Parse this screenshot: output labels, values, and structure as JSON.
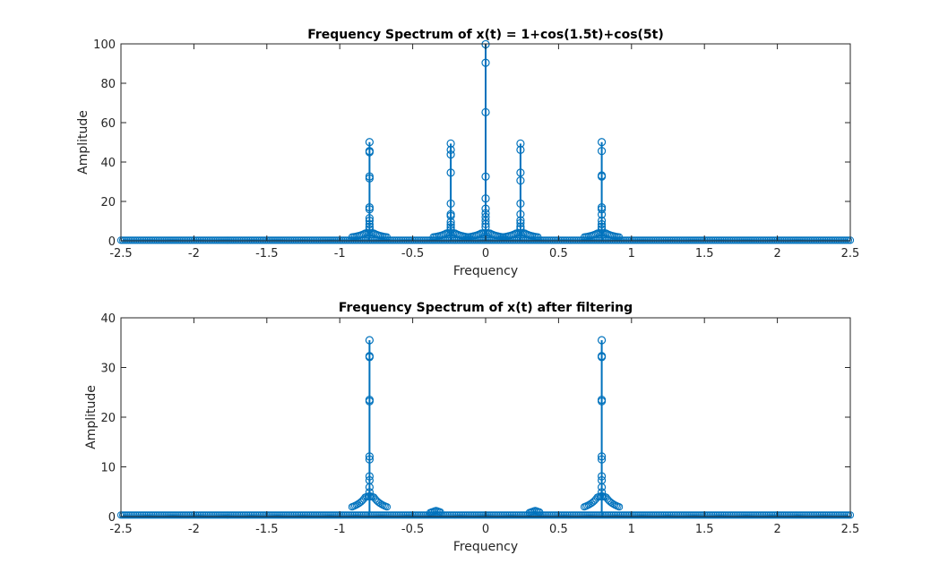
{
  "figure": {
    "background": "#ffffff",
    "series_color": "#0072BD"
  },
  "chart_data": [
    {
      "type": "stem",
      "title": "Frequency Spectrum of x(t) = 1+cos(1.5t)+cos(5t)",
      "xlabel": "Frequency",
      "ylabel": "Amplitude",
      "xlim": [
        -2.5,
        2.5
      ],
      "ylim": [
        0,
        100
      ],
      "xticks": [
        "-2.5",
        "-2",
        "-1.5",
        "-1",
        "-0.5",
        "0",
        "0.5",
        "1",
        "1.5",
        "2",
        "2.5"
      ],
      "yticks": [
        "0",
        "20",
        "40",
        "60",
        "80",
        "100"
      ],
      "grid": false,
      "baseline": 0.3,
      "peaks": [
        {
          "x": -0.796,
          "values": [
            50.1,
            45.6,
            45.0,
            32.7,
            31.7,
            17.0,
            16.0,
            11.5,
            10.2,
            8.4,
            7.1,
            5.9
          ]
        },
        {
          "x": -0.239,
          "values": [
            49.4,
            46.2,
            43.8,
            34.6,
            18.9,
            13.5,
            12.6,
            9.6,
            8.1,
            6.9,
            5.7
          ]
        },
        {
          "x": 0.0,
          "values": [
            99.8,
            90.4,
            65.3,
            32.6,
            21.5,
            16.3,
            14.0,
            12.1,
            10.3,
            8.5,
            7.0
          ]
        },
        {
          "x": 0.239,
          "values": [
            49.4,
            46.2,
            34.6,
            30.6,
            18.9,
            13.5,
            10.4,
            9.0,
            7.2,
            6.0
          ]
        },
        {
          "x": 0.796,
          "values": [
            50.1,
            45.6,
            33.2,
            32.6,
            17.0,
            16.0,
            13.4,
            10.2,
            8.4,
            7.1,
            5.9
          ]
        }
      ]
    },
    {
      "type": "stem",
      "title": "Frequency Spectrum of x(t) after filtering",
      "xlabel": "Frequency",
      "ylabel": "Amplitude",
      "xlim": [
        -2.5,
        2.5
      ],
      "ylim": [
        0,
        40
      ],
      "xticks": [
        "-2.5",
        "-2",
        "-1.5",
        "-1",
        "-0.5",
        "0",
        "0.5",
        "1",
        "1.5",
        "2",
        "2.5"
      ],
      "yticks": [
        "0",
        "10",
        "20",
        "30",
        "40"
      ],
      "grid": false,
      "baseline": 0.3,
      "peaks": [
        {
          "x": -0.796,
          "values": [
            35.5,
            32.3,
            32.1,
            23.5,
            23.2,
            12.1,
            11.5,
            8.1,
            7.3,
            5.9,
            4.9,
            4.1
          ]
        },
        {
          "x": 0.796,
          "values": [
            35.5,
            32.3,
            32.1,
            23.5,
            23.2,
            12.1,
            11.5,
            8.1,
            7.3,
            5.9,
            4.9,
            4.1
          ]
        }
      ],
      "plateau": [
        {
          "x": -0.34,
          "value": 1.2
        },
        {
          "x": 0.34,
          "value": 1.2
        }
      ]
    }
  ]
}
